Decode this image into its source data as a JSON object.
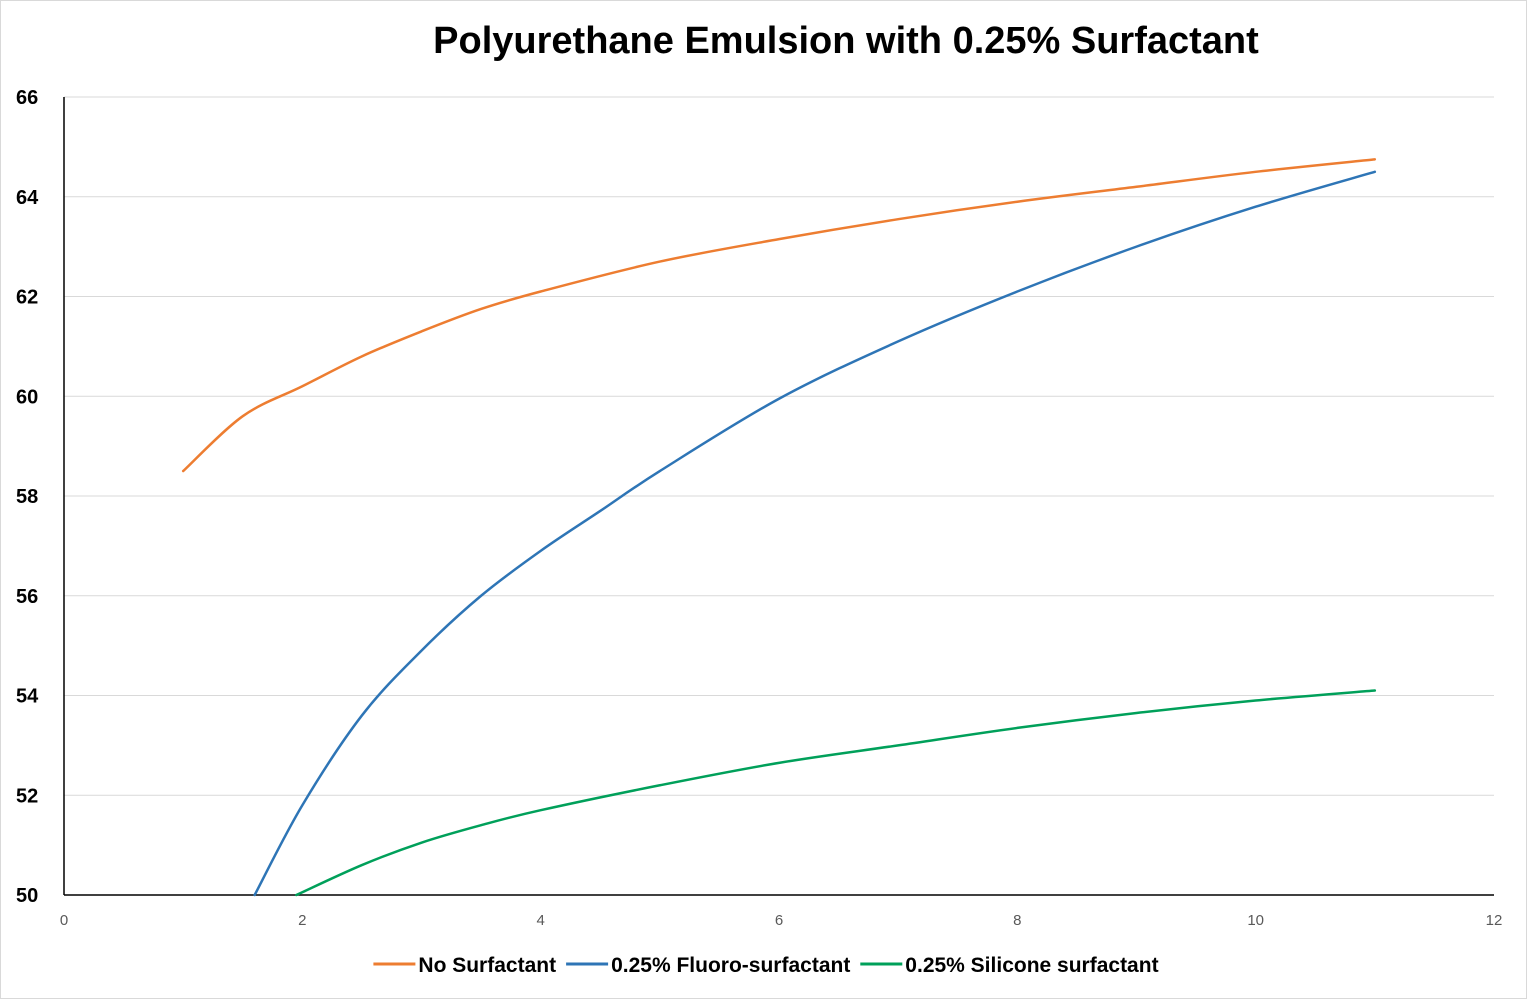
{
  "chart_data": {
    "type": "line",
    "title": "Polyurethane Emulsion with 0.25% Surfactant",
    "xlabel": "",
    "ylabel": "",
    "xlim": [
      0,
      12
    ],
    "ylim": [
      50,
      66
    ],
    "x_ticks": [
      "0",
      "2",
      "4",
      "6",
      "8",
      "10",
      "12"
    ],
    "y_ticks": [
      "50",
      "52",
      "54",
      "56",
      "58",
      "60",
      "62",
      "64",
      "66"
    ],
    "grid": true,
    "legend_position": "bottom",
    "series": [
      {
        "name": "No Surfactant",
        "color": "#ED7D31",
        "x": [
          1,
          1.5,
          2,
          2.5,
          3,
          3.5,
          4,
          5,
          6,
          7,
          8,
          9,
          10,
          11
        ],
        "y": [
          58.5,
          59.6,
          60.2,
          60.8,
          61.3,
          61.75,
          62.1,
          62.7,
          63.15,
          63.55,
          63.9,
          64.2,
          64.5,
          64.75
        ]
      },
      {
        "name": "0.25% Fluoro-surfactant",
        "color": "#2E75B6",
        "x": [
          1.6,
          2,
          2.5,
          3,
          3.5,
          4,
          4.5,
          5,
          6,
          7,
          8,
          9,
          10,
          11
        ],
        "y": [
          50.0,
          51.8,
          53.6,
          54.9,
          56.0,
          56.9,
          57.7,
          58.5,
          59.95,
          61.1,
          62.1,
          63.0,
          63.8,
          64.5
        ]
      },
      {
        "name": "0.25% Silicone surfactant",
        "color": "#00A05A",
        "x": [
          1.95,
          2.5,
          3,
          3.5,
          4,
          5,
          6,
          7,
          8,
          9,
          10,
          11
        ],
        "y": [
          50.0,
          50.6,
          51.05,
          51.4,
          51.7,
          52.2,
          52.65,
          53.0,
          53.35,
          53.65,
          53.9,
          54.1
        ]
      }
    ]
  }
}
